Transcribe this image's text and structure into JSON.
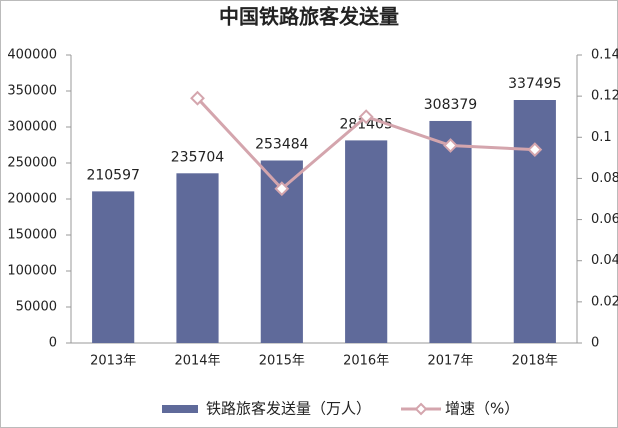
{
  "chart_data": {
    "type": "bar",
    "title": "中国铁路旅客发送量",
    "categories": [
      "2013年",
      "2014年",
      "2015年",
      "2016年",
      "2017年",
      "2018年"
    ],
    "series": [
      {
        "name": "铁路旅客发送量（万人）",
        "color": "#5f6a9a",
        "type": "bar",
        "values": [
          210597,
          235704,
          253484,
          281405,
          308379,
          337495
        ]
      },
      {
        "name": "增速（%）",
        "color": "#d4a5ad",
        "type": "line",
        "axis": "y2",
        "values": [
          null,
          0.119,
          0.075,
          0.11,
          0.096,
          0.094
        ]
      }
    ],
    "ylim": [
      0,
      400000
    ],
    "yticks": [
      0,
      50000,
      100000,
      150000,
      200000,
      250000,
      300000,
      350000,
      400000
    ],
    "y2lim": [
      0,
      0.14
    ],
    "y2ticks": [
      0,
      0.02,
      0.04,
      0.06,
      0.08,
      0.1,
      0.12,
      0.14
    ],
    "grid": false,
    "legend": "bottom"
  }
}
